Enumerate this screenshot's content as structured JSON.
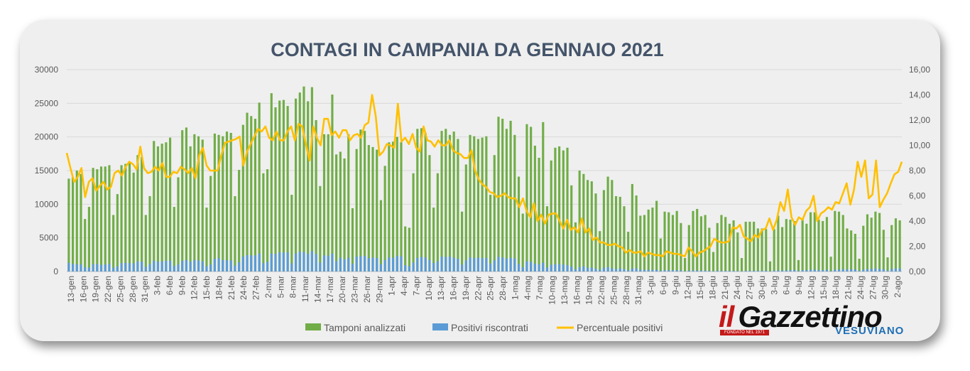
{
  "chart_data": {
    "type": "bar",
    "title": "CONTAGI IN CAMPANIA DA GENNAIO 2021",
    "y_left_ticks": [
      "0",
      "5000",
      "10000",
      "15000",
      "20000",
      "25000",
      "30000"
    ],
    "y_right_ticks": [
      "0,00",
      "2,00",
      "4,00",
      "6,00",
      "8,00",
      "10,00",
      "12,00",
      "14,00",
      "16,00"
    ],
    "ylim_left": [
      0,
      30000
    ],
    "ylim_right": [
      0,
      16
    ],
    "x_labels": [
      "13-gen",
      "16-gen",
      "19-gen",
      "22-gen",
      "25-gen",
      "28-gen",
      "31-gen",
      "3-feb",
      "6-feb",
      "9-feb",
      "12-feb",
      "15-feb",
      "18-feb",
      "21-feb",
      "24-feb",
      "27-feb",
      "2-mar",
      "5-mar",
      "8-mar",
      "11-mar",
      "14-mar",
      "17-mar",
      "20-mar",
      "23-mar",
      "26-mar",
      "29-mar",
      "1-apr",
      "4-apr",
      "7-apr",
      "10-apr",
      "13-apr",
      "16-apr",
      "19-apr",
      "22-apr",
      "25-apr",
      "28-apr",
      "1-mag",
      "4-mag",
      "7-mag",
      "10-mag",
      "13-mag",
      "16-mag",
      "19-mag",
      "22-mag",
      "25-mag",
      "28-mag",
      "31-mag",
      "3-giu",
      "6-giu",
      "9-giu",
      "12-giu",
      "15-giu",
      "18-giu",
      "21-giu",
      "24-giu",
      "27-giu",
      "30-giu",
      "3-lug",
      "6-lug",
      "9-lug",
      "12-lug",
      "15-lug",
      "18-lug",
      "21-lug",
      "24-lug",
      "27-lug",
      "30-lug",
      "2-ago"
    ],
    "series": [
      {
        "name": "Tamponi analizzati",
        "color": "#70ad47",
        "axis": "left",
        "values": [
          13800,
          14000,
          15000,
          14500,
          7800,
          9600,
          15400,
          15200,
          15600,
          15600,
          15800,
          8400,
          11500,
          15800,
          16000,
          16200,
          14700,
          17300,
          17000,
          8400,
          11200,
          19400,
          18600,
          19000,
          19200,
          19900,
          9600,
          14000,
          21000,
          21400,
          18600,
          20400,
          20100,
          19600,
          9500,
          14200,
          20500,
          20300,
          20100,
          20800,
          20600,
          11200,
          15100,
          21800,
          23600,
          23100,
          22700,
          25100,
          14600,
          15200,
          26500,
          24400,
          25400,
          25500,
          24600,
          11400,
          25700,
          26600,
          27500,
          25300,
          27400,
          22500,
          12700,
          20400,
          20400,
          26300,
          17400,
          17800,
          16800,
          20400,
          9400,
          18200,
          21100,
          20900,
          18800,
          18500,
          18100,
          10600,
          15700,
          19200,
          19300,
          20000,
          19200,
          6700,
          6500,
          14600,
          21200,
          21300,
          20600,
          17300,
          9500,
          14600,
          20900,
          21200,
          20300,
          20800,
          19700,
          8900,
          15900,
          20300,
          20100,
          19700,
          19900,
          20100,
          11400,
          17300,
          23000,
          22700,
          21200,
          22400,
          20300,
          14100,
          8600,
          21900,
          21500,
          18700,
          16900,
          22200,
          9700,
          16500,
          18400,
          18600,
          18000,
          18400,
          12800,
          7300,
          15000,
          14500,
          13600,
          13400,
          11600,
          6000,
          12100,
          14100,
          13600,
          11200,
          11100,
          9700,
          5900,
          13000,
          11300,
          8300,
          8400,
          9200,
          9500,
          10500,
          4900,
          8900,
          8800,
          8400,
          9000,
          7200,
          2000,
          6900,
          9000,
          9300,
          8200,
          8400,
          6500,
          2900,
          7200,
          8400,
          8100,
          7100,
          7600,
          5800,
          2000,
          7400,
          7400,
          7400,
          6400,
          6400,
          6300,
          1500,
          6300,
          8300,
          6600,
          7800,
          7700,
          7500,
          1700,
          7900,
          7100,
          8800,
          8800,
          7700,
          7500,
          8100,
          2200,
          9000,
          8900,
          8400,
          6400,
          6100,
          5600,
          1900,
          6800,
          8500,
          8000,
          8900,
          8700,
          6200,
          2100,
          6900,
          7900,
          7600
        ]
      },
      {
        "name": "Positivi riscontrati",
        "color": "#5b9bd5",
        "axis": "left",
        "values": [
          1290,
          1140,
          1060,
          1090,
          640,
          570,
          1090,
          1120,
          1000,
          1060,
          1120,
          550,
          770,
          1240,
          1280,
          1230,
          1220,
          1500,
          1450,
          680,
          1110,
          1600,
          1450,
          1500,
          1600,
          1600,
          830,
          1050,
          1580,
          1700,
          1450,
          1700,
          1630,
          1520,
          780,
          1050,
          1880,
          1980,
          1690,
          1670,
          1640,
          900,
          1390,
          2230,
          2430,
          2400,
          2390,
          2680,
          1230,
          1440,
          2670,
          2610,
          2860,
          2820,
          2840,
          1210,
          2680,
          2950,
          2870,
          2620,
          3030,
          2580,
          1320,
          2390,
          2350,
          2660,
          1530,
          2040,
          1780,
          2050,
          1140,
          2210,
          2280,
          2320,
          2000,
          2070,
          2020,
          1100,
          1690,
          2090,
          2040,
          2320,
          2260,
          940,
          800,
          1340,
          2010,
          2160,
          2070,
          1690,
          1260,
          1510,
          2210,
          2150,
          2210,
          2040,
          1880,
          1020,
          1650,
          2090,
          1990,
          2050,
          1990,
          2010,
          1190,
          1660,
          2170,
          2100,
          1910,
          2020,
          1940,
          1130,
          630,
          1510,
          1430,
          1170,
          1050,
          1300,
          580,
          1020,
          1090,
          1080,
          1040,
          930,
          740,
          350,
          650,
          780,
          550,
          600,
          440,
          270,
          560,
          640,
          480,
          360,
          460,
          340,
          190,
          430,
          480,
          260,
          250,
          240,
          260,
          270,
          120,
          190,
          200,
          190,
          200,
          150,
          40,
          130,
          170,
          140,
          130,
          140,
          100,
          50,
          120,
          100,
          100,
          90,
          90,
          70,
          30,
          100,
          110,
          100,
          110,
          110,
          140,
          40,
          130,
          150,
          150,
          170,
          200,
          230,
          80,
          200,
          210,
          250,
          290,
          220,
          210,
          260,
          70,
          270,
          290,
          350,
          310,
          320,
          310,
          110,
          270,
          360,
          380,
          460,
          380,
          330,
          130,
          380,
          460,
          450
        ]
      },
      {
        "name": "Percentuale positivi",
        "color": "#ffc000",
        "axis": "right",
        "values": [
          9.4,
          8.2,
          7.1,
          7.5,
          8.2,
          5.9,
          7.1,
          7.4,
          6.4,
          6.8,
          7.1,
          6.5,
          6.7,
          7.8,
          8.0,
          7.6,
          8.3,
          8.7,
          8.5,
          8.1,
          9.9,
          8.2,
          7.8,
          7.9,
          8.3,
          8.0,
          8.6,
          7.5,
          7.5,
          7.9,
          7.8,
          8.3,
          8.1,
          7.8,
          8.2,
          7.4,
          9.2,
          9.8,
          8.4,
          8.0,
          8.0,
          8.0,
          9.2,
          10.2,
          10.3,
          10.4,
          10.5,
          10.7,
          8.4,
          9.5,
          10.1,
          10.7,
          11.3,
          11.1,
          11.5,
          10.6,
          10.4,
          11.1,
          10.4,
          10.4,
          11.1,
          11.5,
          10.4,
          11.7,
          11.5,
          10.1,
          8.8,
          11.5,
          10.6,
          10.0,
          12.1,
          12.1,
          10.8,
          11.1,
          10.6,
          11.2,
          11.2,
          10.4,
          10.8,
          10.9,
          10.6,
          11.6,
          11.8,
          14.0,
          12.3,
          9.2,
          9.5,
          10.1,
          10.0,
          9.8,
          13.3,
          10.3,
          10.6,
          10.1,
          10.9,
          9.8,
          9.5,
          11.5,
          10.4,
          10.3,
          9.9,
          10.4,
          10.0,
          10.0,
          10.4,
          9.6,
          9.4,
          9.3,
          9.0,
          9.0,
          9.6,
          8.0,
          7.3,
          6.9,
          6.7,
          6.3,
          6.2,
          5.9,
          6.0,
          6.2,
          5.9,
          5.8,
          5.8,
          5.1,
          5.8,
          4.8,
          4.3,
          5.4,
          4.0,
          4.5,
          3.8,
          4.5,
          4.6,
          4.6,
          4.0,
          3.4,
          4.1,
          3.3,
          3.5,
          3.1,
          4.2,
          3.1,
          3.4,
          2.5,
          2.7,
          2.3,
          2.3,
          2.1,
          2.1,
          2.2,
          2.0,
          1.9,
          1.5,
          1.7,
          1.5,
          1.5,
          1.6,
          1.2,
          1.5,
          1.4,
          1.3,
          1.3,
          1.2,
          1.6,
          1.5,
          1.4,
          1.4,
          1.3,
          1.2,
          1.9,
          1.6,
          1.2,
          1.5,
          1.6,
          1.8,
          2.0,
          2.6,
          2.4,
          2.3,
          2.3,
          2.4,
          3.5,
          3.4,
          3.7,
          2.8,
          2.6,
          2.4,
          2.9,
          2.7,
          3.3,
          3.4,
          4.2,
          3.3,
          4.1,
          5.5,
          4.8,
          6.5,
          4.3,
          3.7,
          4.3,
          4.1,
          4.8,
          5.1,
          6.0,
          4.0,
          4.6,
          4.8,
          5.1,
          4.9,
          5.5,
          5.4,
          6.2,
          7.0,
          5.3,
          6.5,
          8.7,
          7.5,
          8.8,
          5.8,
          6.1,
          8.8,
          5.1,
          5.7,
          6.2,
          7.0,
          7.7,
          7.9,
          8.7
        ]
      }
    ],
    "legend_position": "bottom",
    "grid": true
  },
  "logo": {
    "main_il": "il",
    "main_word": "Gazzettino",
    "tagline": "FONDATO NEL 1971",
    "sub": "VESUVIANO"
  }
}
